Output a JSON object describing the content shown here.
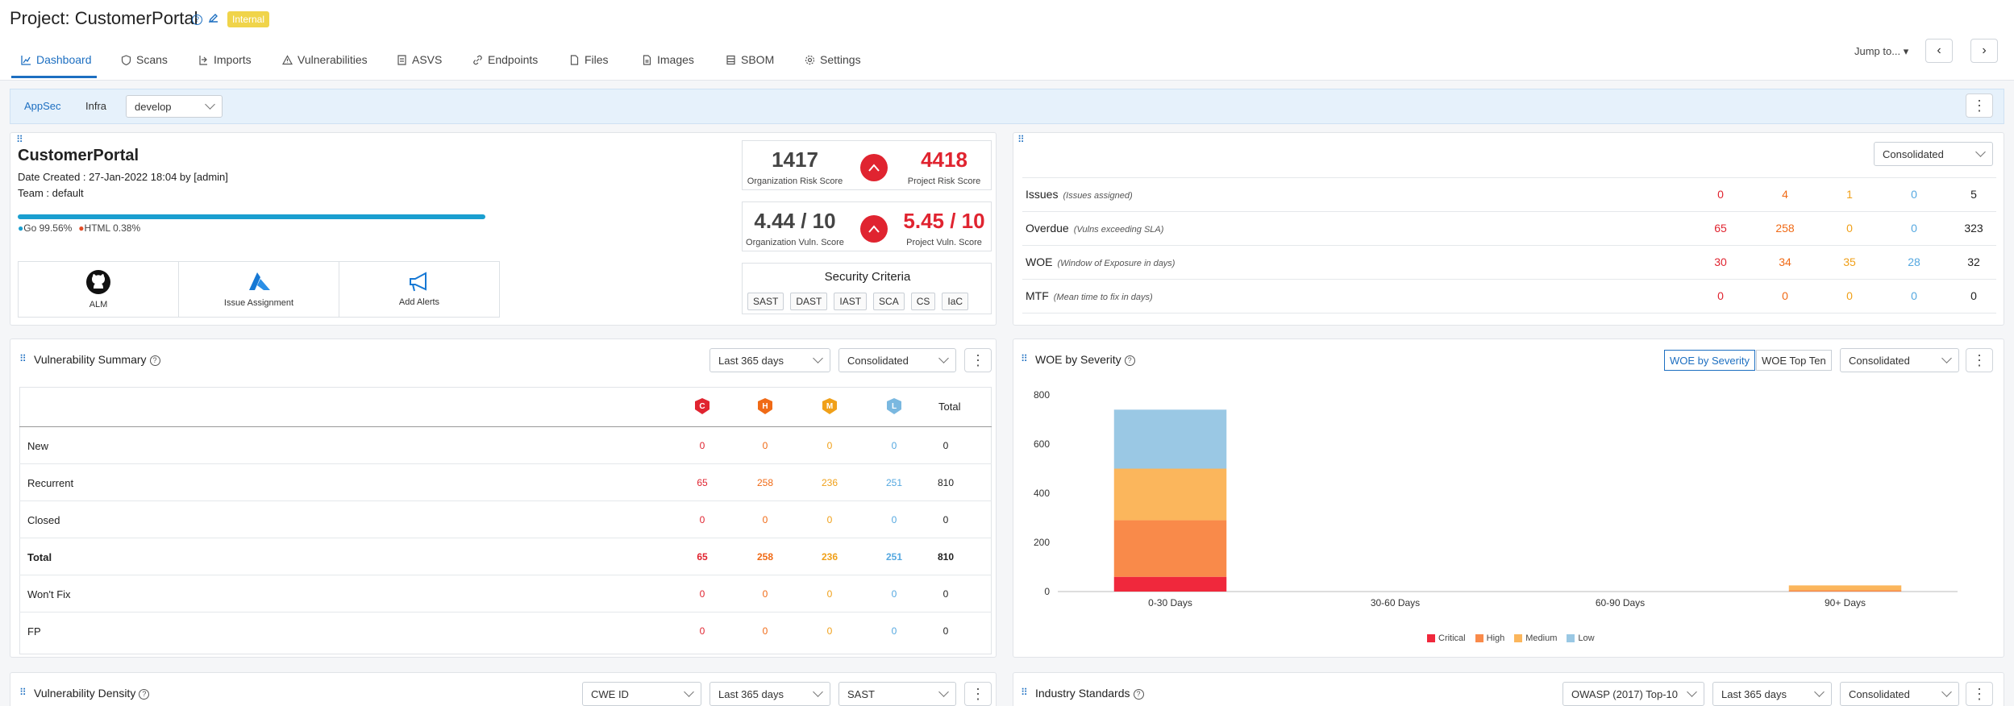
{
  "header": {
    "title": "Project: CustomerPortal",
    "badge": "Internal",
    "tabs": [
      {
        "label": "Dashboard",
        "icon": "chart-icon"
      },
      {
        "label": "Scans",
        "icon": "shield-icon"
      },
      {
        "label": "Imports",
        "icon": "import-icon"
      },
      {
        "label": "Vulnerabilities",
        "icon": "warning-icon"
      },
      {
        "label": "ASVS",
        "icon": "checklist-icon"
      },
      {
        "label": "Endpoints",
        "icon": "link-icon"
      },
      {
        "label": "Files",
        "icon": "file-icon"
      },
      {
        "label": "Images",
        "icon": "image-icon"
      },
      {
        "label": "SBOM",
        "icon": "list-icon"
      },
      {
        "label": "Settings",
        "icon": "gear-icon"
      }
    ],
    "jump_to": "Jump to...",
    "prev": "‹",
    "next": "›"
  },
  "filterbar": {
    "appsec": "AppSec",
    "infra": "Infra",
    "branch": "develop"
  },
  "project_card": {
    "name": "CustomerPortal",
    "date_created": "Date Created : 27-Jan-2022 18:04 by [admin]",
    "team": "Team : default",
    "languages": [
      {
        "name": "Go 99.56%",
        "color": "#1a9fd0",
        "percent": 99.56
      },
      {
        "name": "HTML 0.38%",
        "color": "#e34c26",
        "percent": 0.38
      }
    ],
    "actions": [
      {
        "label": "ALM",
        "icon": "github-icon"
      },
      {
        "label": "Issue Assignment",
        "icon": "azure-icon"
      },
      {
        "label": "Add Alerts",
        "icon": "megaphone-icon"
      }
    ]
  },
  "scores": {
    "org_risk": "1417",
    "org_risk_label": "Organization Risk Score",
    "proj_risk": "4418",
    "proj_risk_label": "Project Risk Score",
    "org_vuln": "4.44 / 10",
    "org_vuln_label": "Organization Vuln. Score",
    "proj_vuln": "5.45 / 10",
    "proj_vuln_label": "Project Vuln. Score",
    "criteria_title": "Security Criteria",
    "criteria": [
      "SAST",
      "DAST",
      "IAST",
      "SCA",
      "CS",
      "IaC"
    ]
  },
  "issues_panel": {
    "mode": "Consolidated",
    "rows": [
      {
        "label": "Issues",
        "note": "(Issues assigned)",
        "c": "0",
        "h": "4",
        "m": "1",
        "l": "0",
        "total": "5"
      },
      {
        "label": "Overdue",
        "note": "(Vulns exceeding SLA)",
        "c": "65",
        "h": "258",
        "m": "0",
        "l": "0",
        "total": "323"
      },
      {
        "label": "WOE",
        "note": "(Window of Exposure in days)",
        "c": "30",
        "h": "34",
        "m": "35",
        "l": "28",
        "total": "32"
      },
      {
        "label": "MTF",
        "note": "(Mean time to fix in days)",
        "c": "0",
        "h": "0",
        "m": "0",
        "l": "0",
        "total": "0"
      }
    ]
  },
  "vuln_summary": {
    "title": "Vulnerability Summary",
    "range": "Last 365 days",
    "mode": "Consolidated",
    "head": {
      "c": "C",
      "h": "H",
      "m": "M",
      "l": "L",
      "total": "Total"
    },
    "rows": [
      {
        "label": "New",
        "c": "0",
        "h": "0",
        "m": "0",
        "l": "0",
        "total": "0"
      },
      {
        "label": "Recurrent",
        "c": "65",
        "h": "258",
        "m": "236",
        "l": "251",
        "total": "810"
      },
      {
        "label": "Closed",
        "c": "0",
        "h": "0",
        "m": "0",
        "l": "0",
        "total": "0"
      },
      {
        "label": "Total",
        "c": "65",
        "h": "258",
        "m": "236",
        "l": "251",
        "total": "810"
      },
      {
        "label": "Won't Fix",
        "c": "0",
        "h": "0",
        "m": "0",
        "l": "0",
        "total": "0"
      },
      {
        "label": "FP",
        "c": "0",
        "h": "0",
        "m": "0",
        "l": "0",
        "total": "0"
      }
    ]
  },
  "woe_panel": {
    "title": "WOE by Severity",
    "toggle_on": "WOE by Severity",
    "toggle_off": "WOE Top Ten",
    "mode": "Consolidated"
  },
  "chart_data": {
    "type": "bar",
    "stacked": true,
    "categories": [
      "0-30 Days",
      "30-60 Days",
      "60-90 Days",
      "90+ Days"
    ],
    "series": [
      {
        "name": "Critical",
        "color": "#f0283c",
        "values": [
          60,
          0,
          0,
          0
        ]
      },
      {
        "name": "High",
        "color": "#f98a4a",
        "values": [
          230,
          0,
          0,
          5
        ]
      },
      {
        "name": "Medium",
        "color": "#fbb65c",
        "values": [
          210,
          0,
          0,
          20
        ]
      },
      {
        "name": "Low",
        "color": "#9ac8e4",
        "values": [
          240,
          0,
          0,
          0
        ]
      }
    ],
    "yticks": [
      "0",
      "200",
      "400",
      "600",
      "800"
    ],
    "ylim": [
      0,
      800
    ],
    "legend": "bottom"
  },
  "bottom": {
    "density_title": "Vulnerability Density",
    "density_sel1": "CWE ID",
    "density_sel2": "Last 365 days",
    "density_sel3": "SAST",
    "industry_title": "Industry Standards",
    "industry_sel1": "OWASP (2017) Top-10",
    "industry_sel2": "Last 365 days",
    "industry_sel3": "Consolidated"
  }
}
